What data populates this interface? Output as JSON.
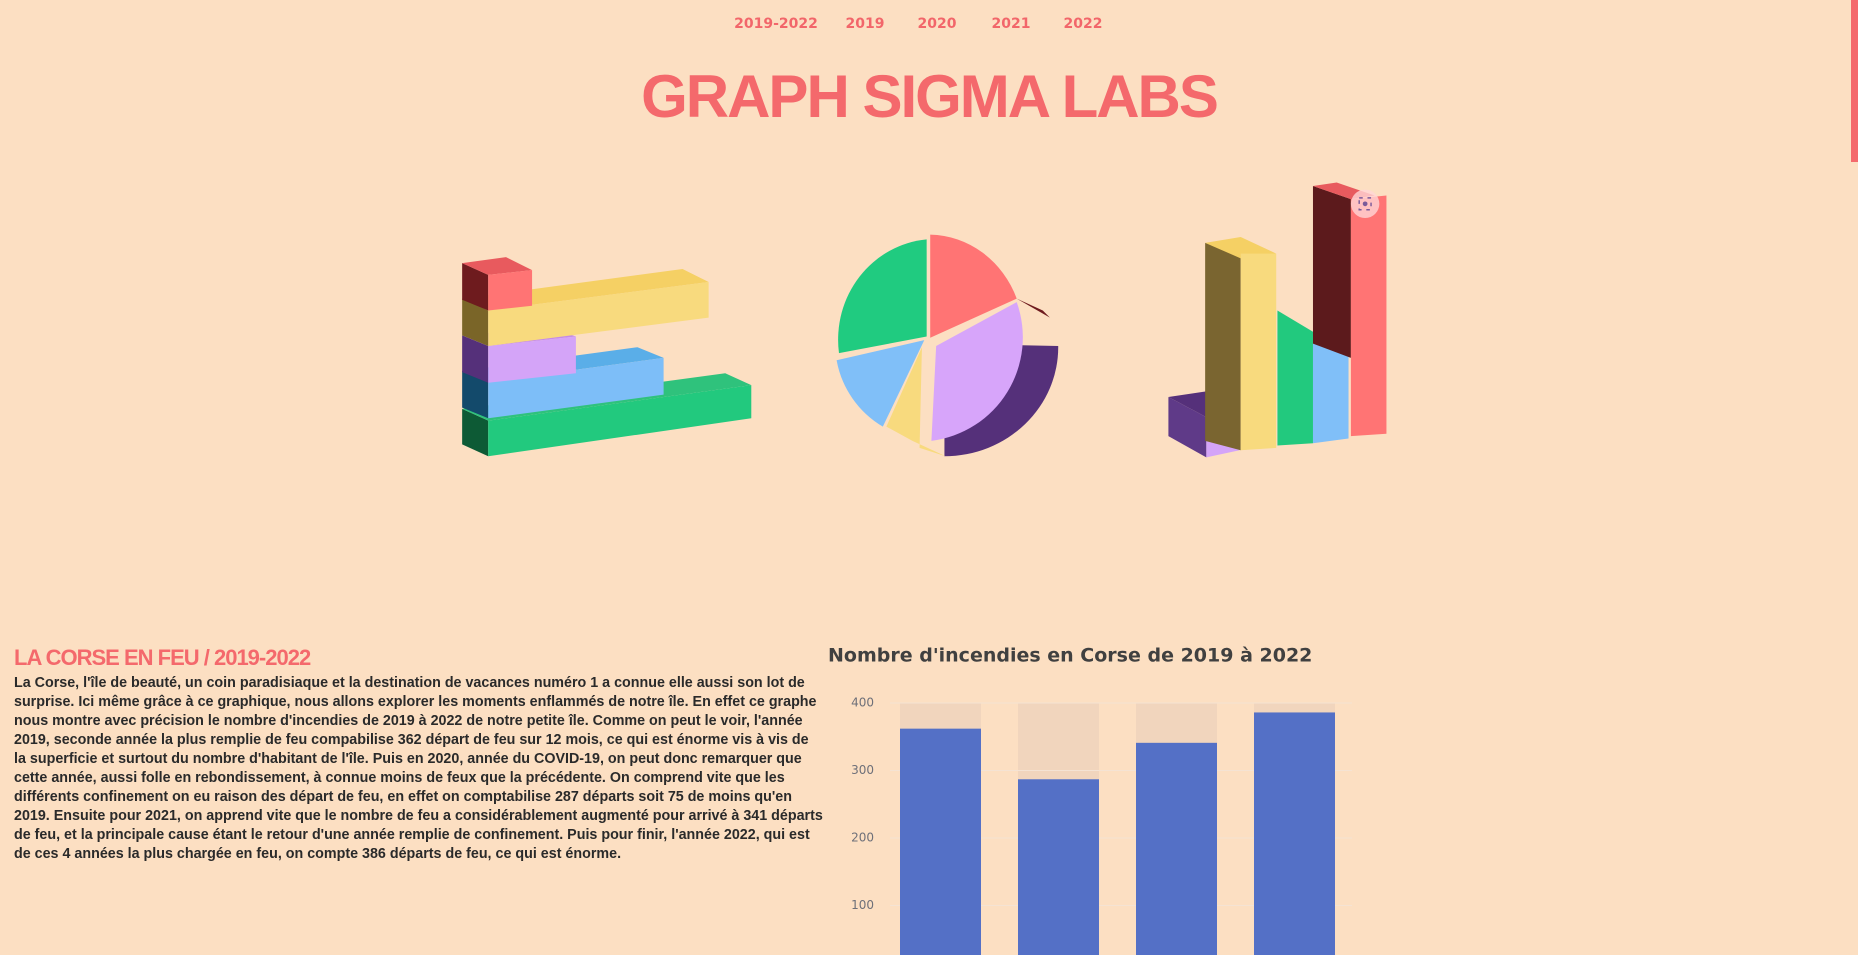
{
  "nav": [
    "2019-2022",
    "2019",
    "2020",
    "2021",
    "2022"
  ],
  "header": {
    "title": "GRAPH SIGMA LABS"
  },
  "article": {
    "heading": "LA CORSE EN FEU / 2019-2022",
    "body": "La Corse, l'île de beauté, un coin paradisiaque et la destination de vacances numéro 1 a connue elle aussi son lot de surprise. Ici même grâce à ce graphique, nous allons explorer les moments enflammés de notre île. En effet ce graphe nous montre avec précision le nombre d'incendies de 2019 à 2022 de notre petite île. Comme on peut le voir, l'année 2019, seconde année la plus remplie de feu compabilise 362 départ de feu sur 12 mois, ce qui est énorme vis à vis de la superficie et surtout du nombre d'habitant de l'île. Puis en 2020, année du COVID-19, on peut donc remarquer que cette année, aussi folle en rebondissement, à connue moins de feux que la précédente. On comprend vite que les différents confinement on eu raison des départ de feu, en effet on comptabilise 287 départs soit 75 de moins qu'en 2019. Ensuite pour 2021, on apprend vite que le nombre de feu a considérablement augmenté pour arrivé à 341 départs de feu, et la principale cause étant le retour d'une année remplie de confinement. Puis pour finir, l'année 2022, qui est de ces 4 années la plus chargée en feu, on compte 386 départs de feu, ce qui est énorme."
  },
  "chart_data": {
    "type": "bar",
    "title": "Nombre d'incendies en Corse de 2019 à 2022",
    "values": [
      362,
      287,
      341,
      386
    ],
    "color": "#5470c6",
    "ylim": [
      0,
      400
    ],
    "yticks": [
      100,
      200,
      300,
      400
    ],
    "grid": true
  }
}
